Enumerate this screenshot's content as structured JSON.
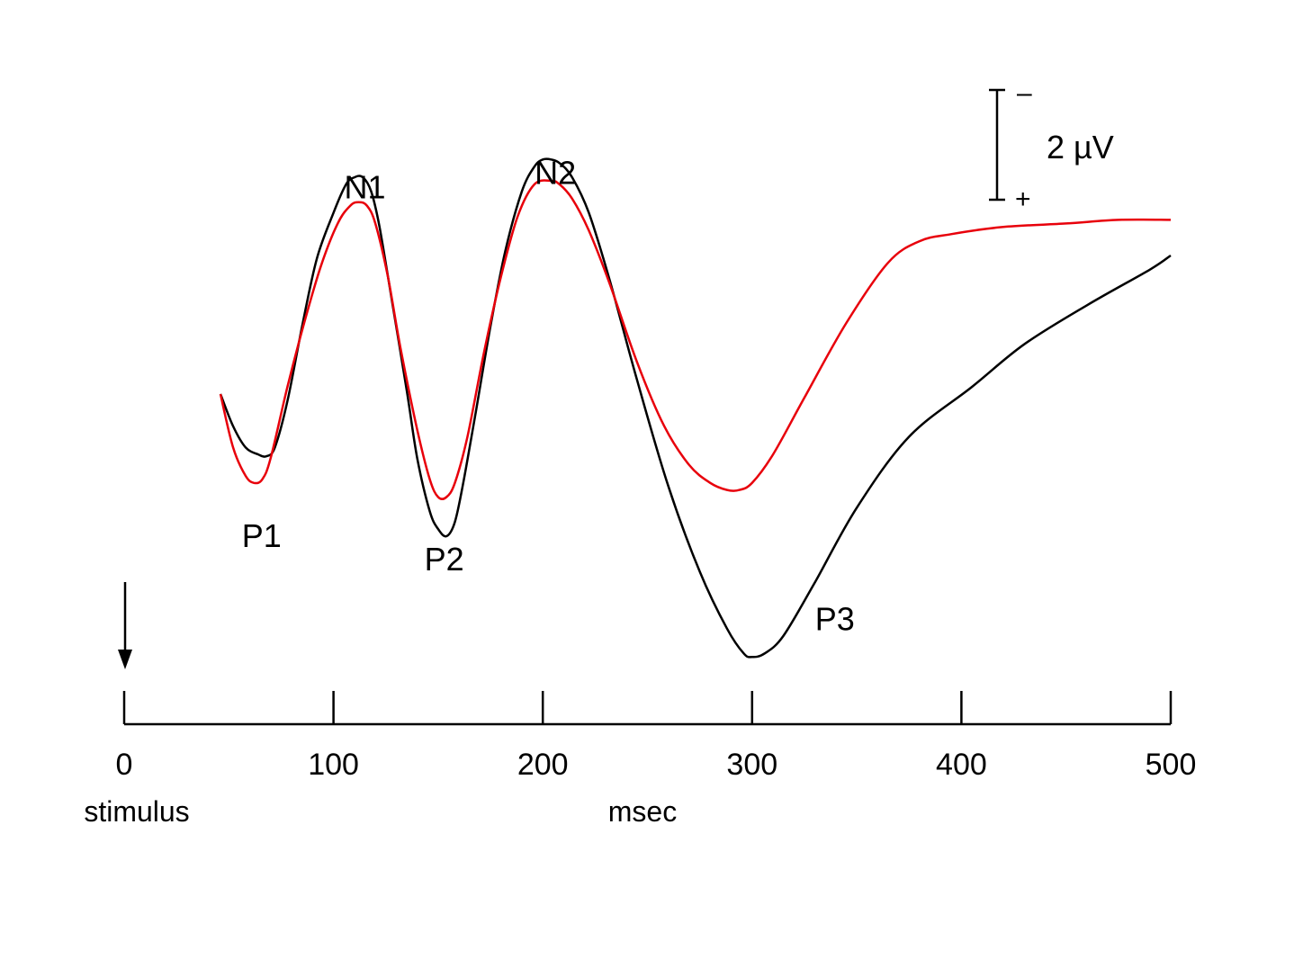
{
  "chart_data": {
    "type": "line",
    "xlabel": "msec",
    "x_ticks": [
      "0",
      "100",
      "200",
      "300",
      "400",
      "500"
    ],
    "xlim": [
      0,
      500
    ],
    "polarity": "negative up",
    "stimulus_label": "stimulus",
    "scale_bar": {
      "label": "2 µV",
      "value_uv": 2,
      "top_sign": "–",
      "bottom_sign": "+"
    },
    "peak_labels": [
      {
        "text": "N1",
        "x": 115,
        "y": -4.9
      },
      {
        "text": "N2",
        "x": 206,
        "y": -5.3
      },
      {
        "text": "P1",
        "x": 70,
        "y": 4.4
      },
      {
        "text": "P2",
        "x": 152,
        "y": 5.2
      },
      {
        "text": "P3",
        "x": 300,
        "y": 7.2
      }
    ],
    "series": [
      {
        "color": "#000000",
        "x": [
          46,
          52,
          58,
          64,
          68,
          72,
          78,
          85,
          92,
          100,
          106,
          110,
          114,
          118,
          122,
          128,
          135,
          140,
          146,
          150,
          154,
          158,
          162,
          168,
          175,
          182,
          190,
          196,
          200,
          204,
          208,
          214,
          222,
          232,
          245,
          260,
          275,
          288,
          296,
          300,
          306,
          315,
          330,
          350,
          375,
          405,
          430,
          460,
          490,
          500
        ],
        "y": [
          0.0,
          0.9,
          1.5,
          1.7,
          1.75,
          1.5,
          0.2,
          -1.9,
          -3.8,
          -5.1,
          -5.9,
          -6.1,
          -6.1,
          -5.7,
          -4.7,
          -2.6,
          -0.1,
          1.8,
          3.3,
          3.8,
          4.0,
          3.6,
          2.5,
          0.5,
          -1.9,
          -4.0,
          -5.7,
          -6.4,
          -6.6,
          -6.6,
          -6.5,
          -6.1,
          -5.1,
          -3.2,
          -0.4,
          2.6,
          5.0,
          6.6,
          7.3,
          7.4,
          7.3,
          6.8,
          5.3,
          3.2,
          1.2,
          -0.2,
          -1.4,
          -2.5,
          -3.5,
          -3.9
        ]
      },
      {
        "color": "#e8000b",
        "x": [
          46,
          52,
          58,
          62,
          66,
          70,
          78,
          86,
          94,
          102,
          108,
          112,
          116,
          120,
          126,
          132,
          140,
          146,
          150,
          154,
          158,
          164,
          172,
          180,
          188,
          196,
          204,
          208,
          214,
          222,
          232,
          245,
          258,
          270,
          280,
          288,
          294,
          300,
          310,
          325,
          345,
          365,
          380,
          395,
          420,
          450,
          475,
          500
        ],
        "y": [
          0.0,
          1.5,
          2.3,
          2.5,
          2.4,
          1.8,
          -0.2,
          -2.0,
          -3.6,
          -4.8,
          -5.3,
          -5.4,
          -5.3,
          -4.8,
          -3.3,
          -1.3,
          1.0,
          2.4,
          2.9,
          2.9,
          2.5,
          1.2,
          -1.2,
          -3.3,
          -5.0,
          -5.9,
          -6.0,
          -5.9,
          -5.5,
          -4.6,
          -3.1,
          -0.9,
          0.9,
          2.0,
          2.5,
          2.7,
          2.7,
          2.5,
          1.7,
          0.1,
          -2.0,
          -3.7,
          -4.3,
          -4.5,
          -4.7,
          -4.8,
          -4.9,
          -4.9
        ]
      }
    ]
  }
}
